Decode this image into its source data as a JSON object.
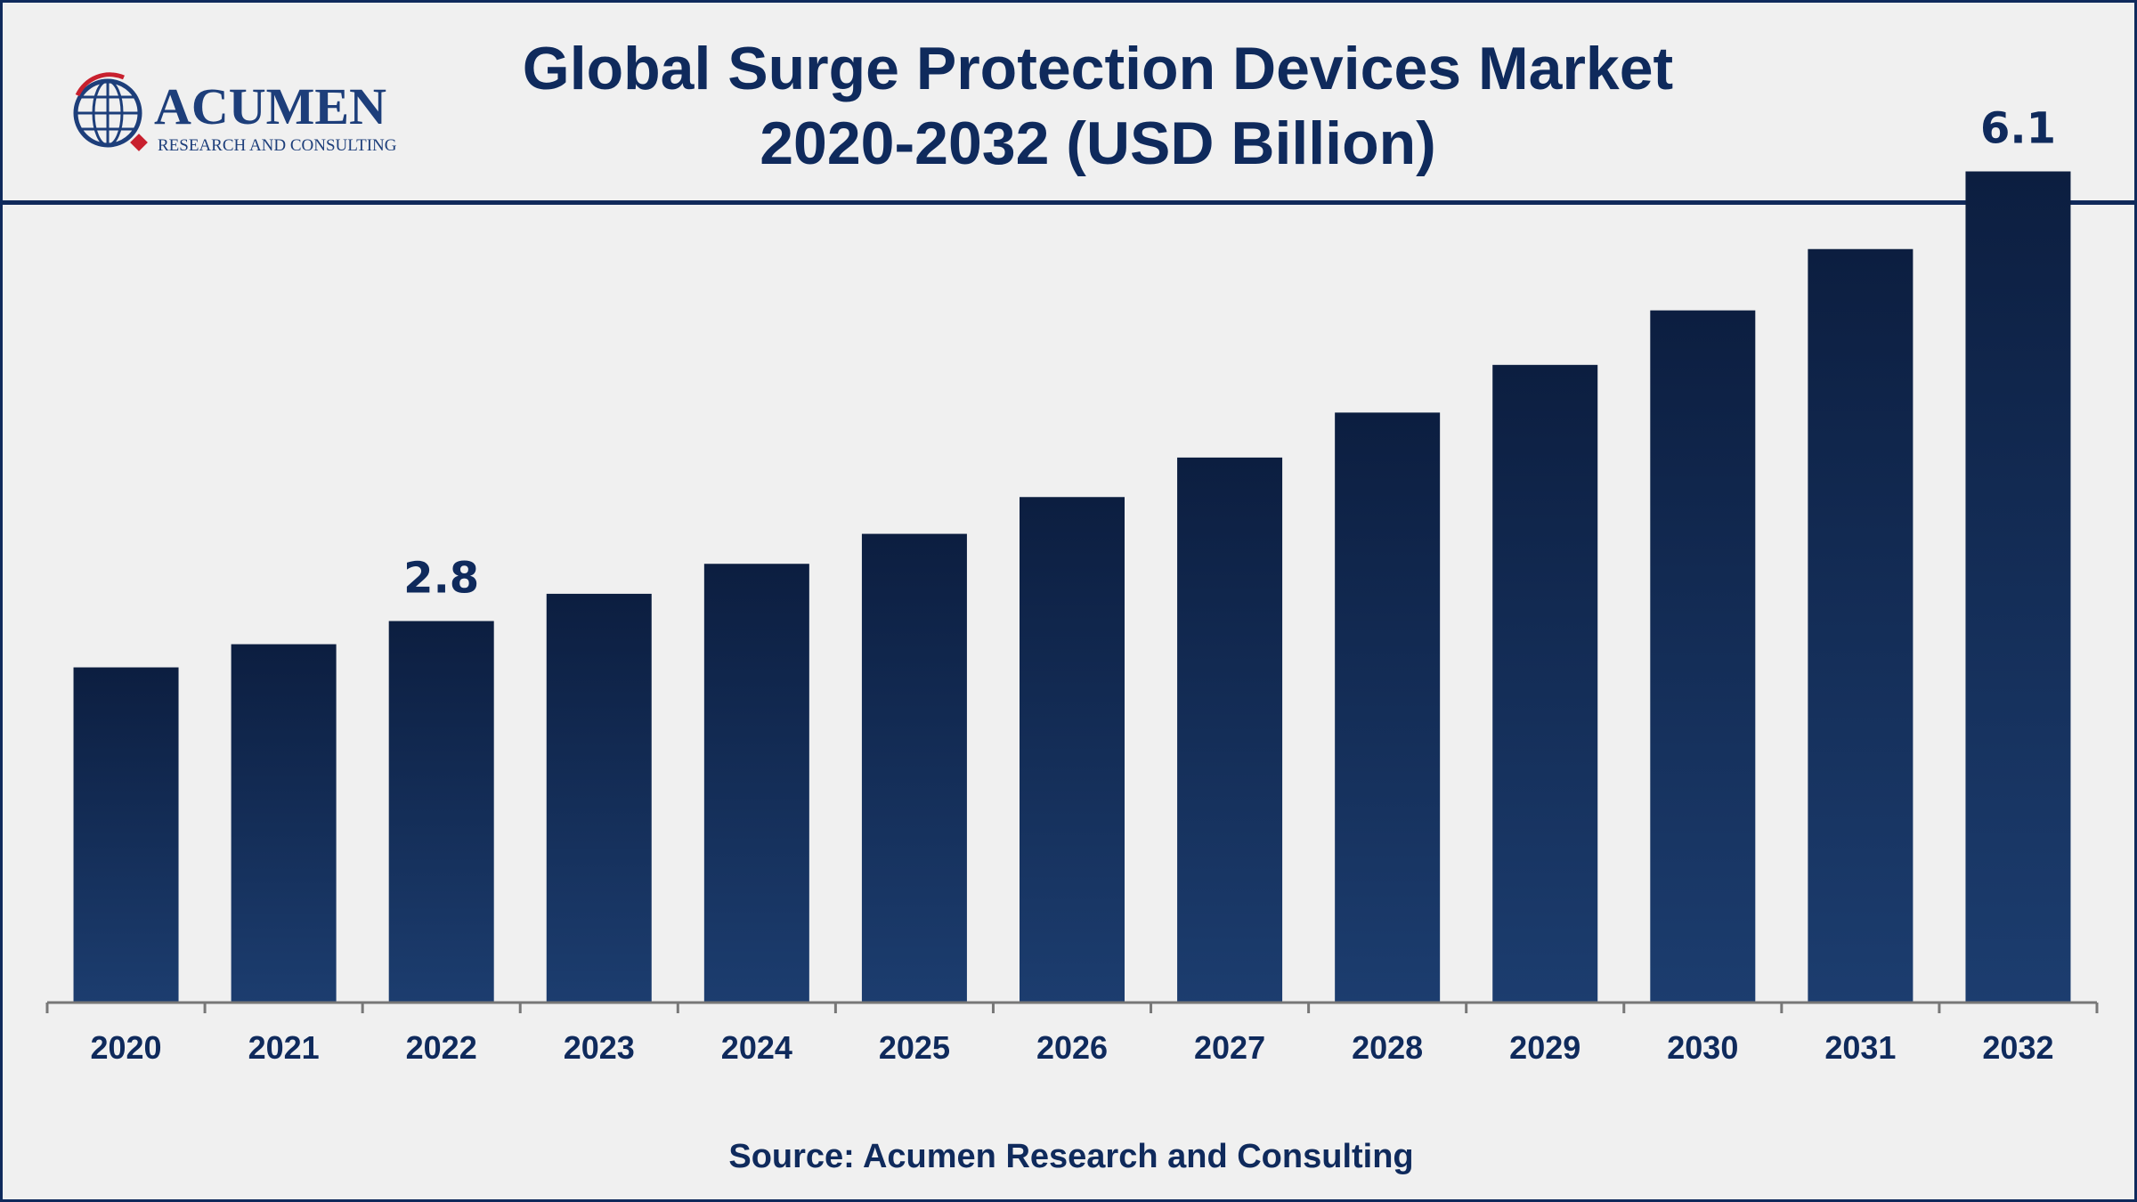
{
  "header": {
    "logo": {
      "name": "ACUMEN",
      "tagline": "RESEARCH AND CONSULTING"
    }
  },
  "chart_data": {
    "type": "bar",
    "title": "Global Surge Protection Devices Market",
    "subtitle": "2020-2032 (USD Billion)",
    "xlabel": "",
    "ylabel": "",
    "categories": [
      "2020",
      "2021",
      "2022",
      "2023",
      "2024",
      "2025",
      "2026",
      "2027",
      "2028",
      "2029",
      "2030",
      "2031",
      "2032"
    ],
    "values": [
      2.46,
      2.63,
      2.8,
      3.0,
      3.22,
      3.44,
      3.71,
      4.0,
      4.33,
      4.68,
      5.08,
      5.53,
      6.1
    ],
    "data_labels": [
      {
        "category": "2022",
        "text": "2.8"
      },
      {
        "category": "2032",
        "text": "6.1"
      }
    ],
    "ylim": [
      0,
      6.6
    ],
    "grid": false,
    "legend": "none",
    "colors": {
      "bar_top": "#0c1e40",
      "bar_bottom": "#1c3d6f",
      "axis": "#777777",
      "text": "#0f2a5c"
    }
  },
  "footer": {
    "source": "Source: Acumen Research and Consulting"
  }
}
